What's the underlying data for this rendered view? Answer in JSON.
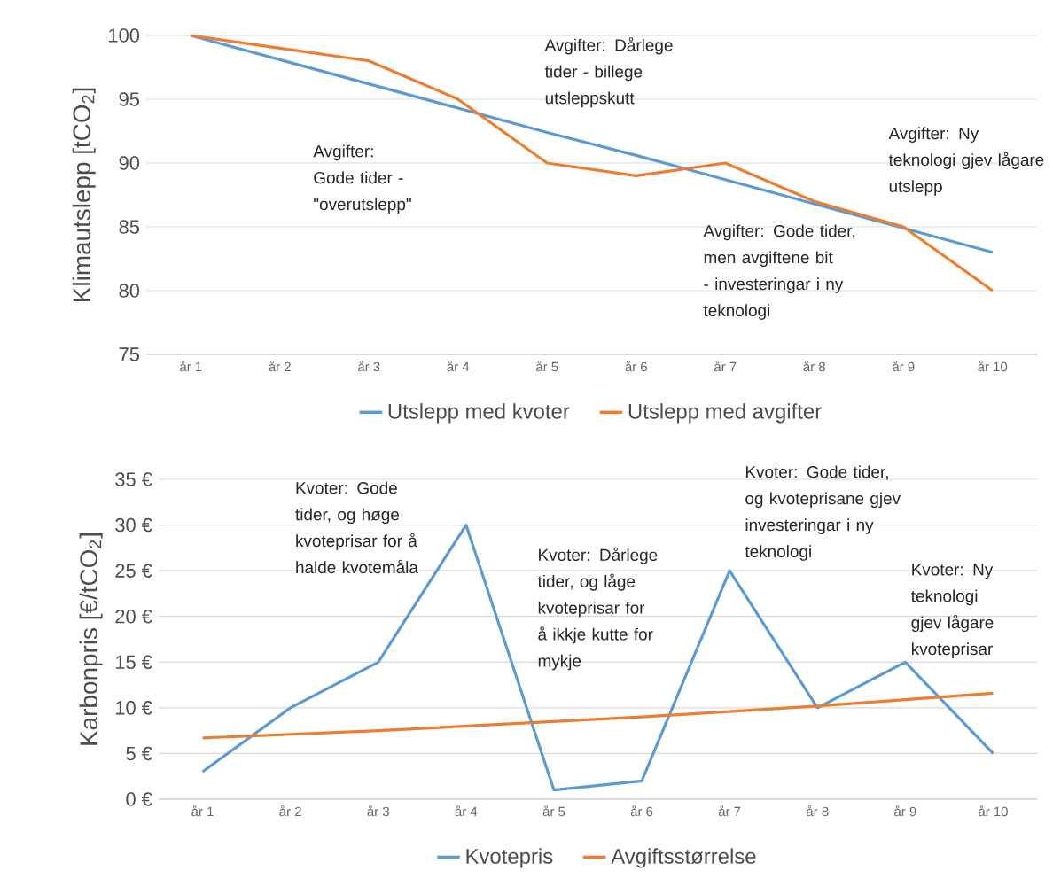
{
  "chart_data": [
    {
      "type": "line",
      "ylabel": "Klimautslepp [tCO$_{2}$]",
      "categories": [
        "år 1",
        "år 2",
        "år 3",
        "år 4",
        "år 5",
        "år 6",
        "år 7",
        "år 8",
        "år 9",
        "år 10"
      ],
      "series": [
        {
          "name": "Utslepp med kvoter",
          "color": "#5b9bd5",
          "values": [
            100,
            98.1,
            96.2,
            94.3,
            92.4,
            90.6,
            88.7,
            86.8,
            84.9,
            83
          ]
        },
        {
          "name": "Utslepp med avgifter",
          "color": "#ed7d31",
          "values": [
            100,
            99,
            98,
            95,
            90,
            89,
            90,
            87,
            85,
            80
          ]
        }
      ],
      "ylim": [
        75,
        100
      ],
      "yticks": [
        75,
        80,
        85,
        90,
        95,
        100
      ],
      "grid": "y",
      "legend": "bottom",
      "annotations": [
        "Avgifter: Gode tider - \"overutslepp\"",
        "Avgifter: Dårlege tider - billege utsleppskutt",
        "Avgifter: Ny teknologi gjev lågare utslepp",
        "Avgifter: Gode tider, men avgiftene bit - investeringar i ny teknologi"
      ]
    },
    {
      "type": "line",
      "ylabel": "Karbonpris [€/tCO$_{2}$]",
      "categories": [
        "år 1",
        "år 2",
        "år 3",
        "år 4",
        "år 5",
        "år 6",
        "år 7",
        "år 8",
        "år 9",
        "år 10"
      ],
      "series": [
        {
          "name": "Kvotepris",
          "color": "#5b9bd5",
          "values": [
            3,
            10,
            15,
            30,
            1,
            2,
            25,
            10,
            15,
            5
          ]
        },
        {
          "name": "Avgiftsstørrelse",
          "color": "#ed7d31",
          "values": [
            6.7,
            7.1,
            7.5,
            8.0,
            8.5,
            9.0,
            9.6,
            10.2,
            10.9,
            11.6
          ]
        }
      ],
      "ylim": [
        0,
        35
      ],
      "yticks": [
        {
          "value": 0,
          "label": "0 €"
        },
        {
          "value": 5,
          "label": "5 €"
        },
        {
          "value": 10,
          "label": "10 €"
        },
        {
          "value": 15,
          "label": "15 €"
        },
        {
          "value": 20,
          "label": "20 €"
        },
        {
          "value": 25,
          "label": "25 €"
        },
        {
          "value": 30,
          "label": "30 €"
        },
        {
          "value": 35,
          "label": "35 €"
        }
      ],
      "grid": "y",
      "legend": "bottom",
      "annotations": [
        "Kvoter: Gode tider, og høge kvoteprisar for å halde kvotemåla",
        "Kvoter: Dårlege tider, og låge kvoteprisar for å ikkje kutte for mykje",
        "Kvoter: Gode tider, og kvoteprisane gjev investeringar i ny teknologi",
        "Kvoter: Ny teknologi gjev lågare kvoteprisar"
      ]
    }
  ]
}
